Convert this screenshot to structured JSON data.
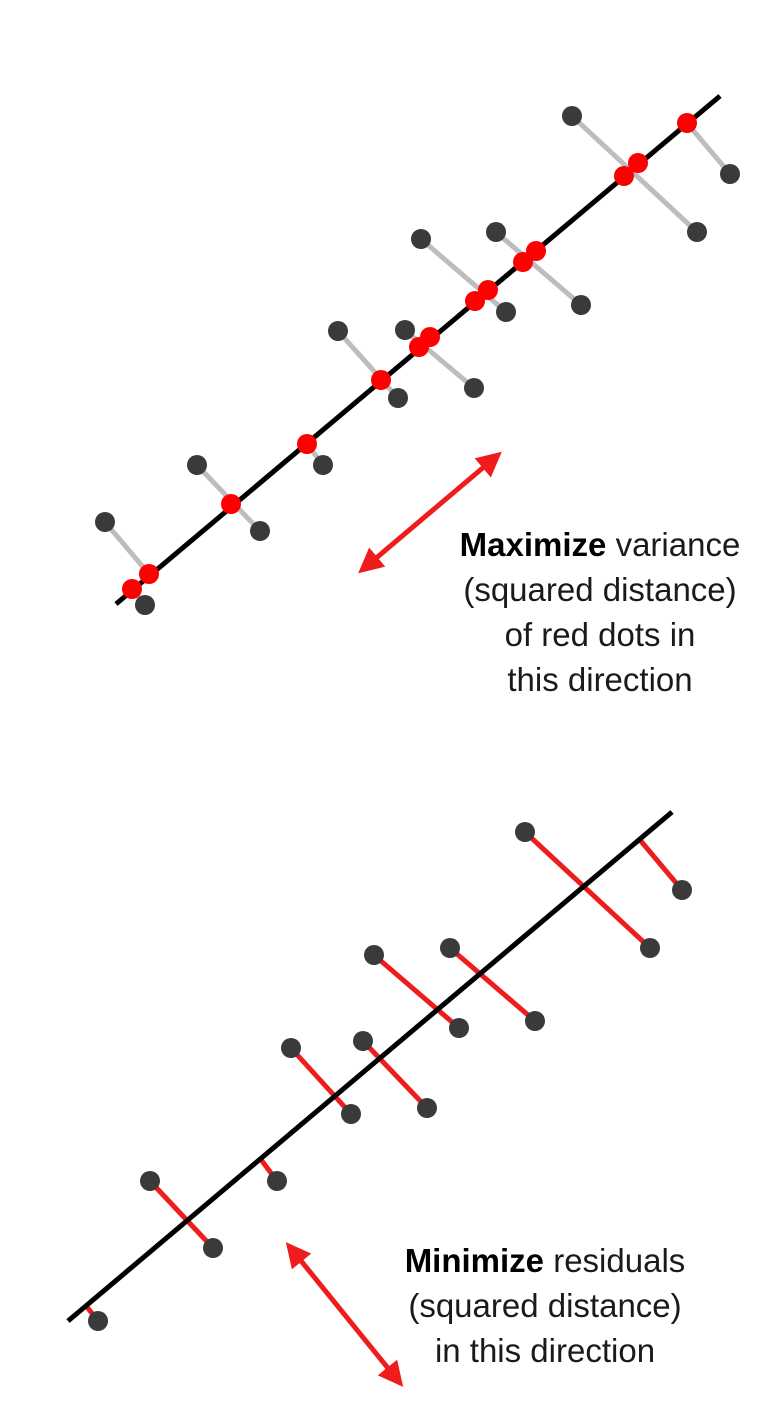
{
  "top_panel": {
    "caption": {
      "keyword": "Maximize",
      "rest_first_line": "variance",
      "lines": [
        "(squared distance)",
        "of red dots in",
        "this direction"
      ]
    }
  },
  "bottom_panel": {
    "caption": {
      "keyword": "Minimize",
      "rest_first_line": "residuals",
      "lines": [
        "(squared distance)",
        "in this direction"
      ]
    }
  },
  "colors": {
    "line": "#000000",
    "point": "#3a3a3a",
    "projection": "#ff0000",
    "projection_connector": "#bdbdbd",
    "residual": "#ee1c1c",
    "arrow": "#ee1c1c"
  }
}
